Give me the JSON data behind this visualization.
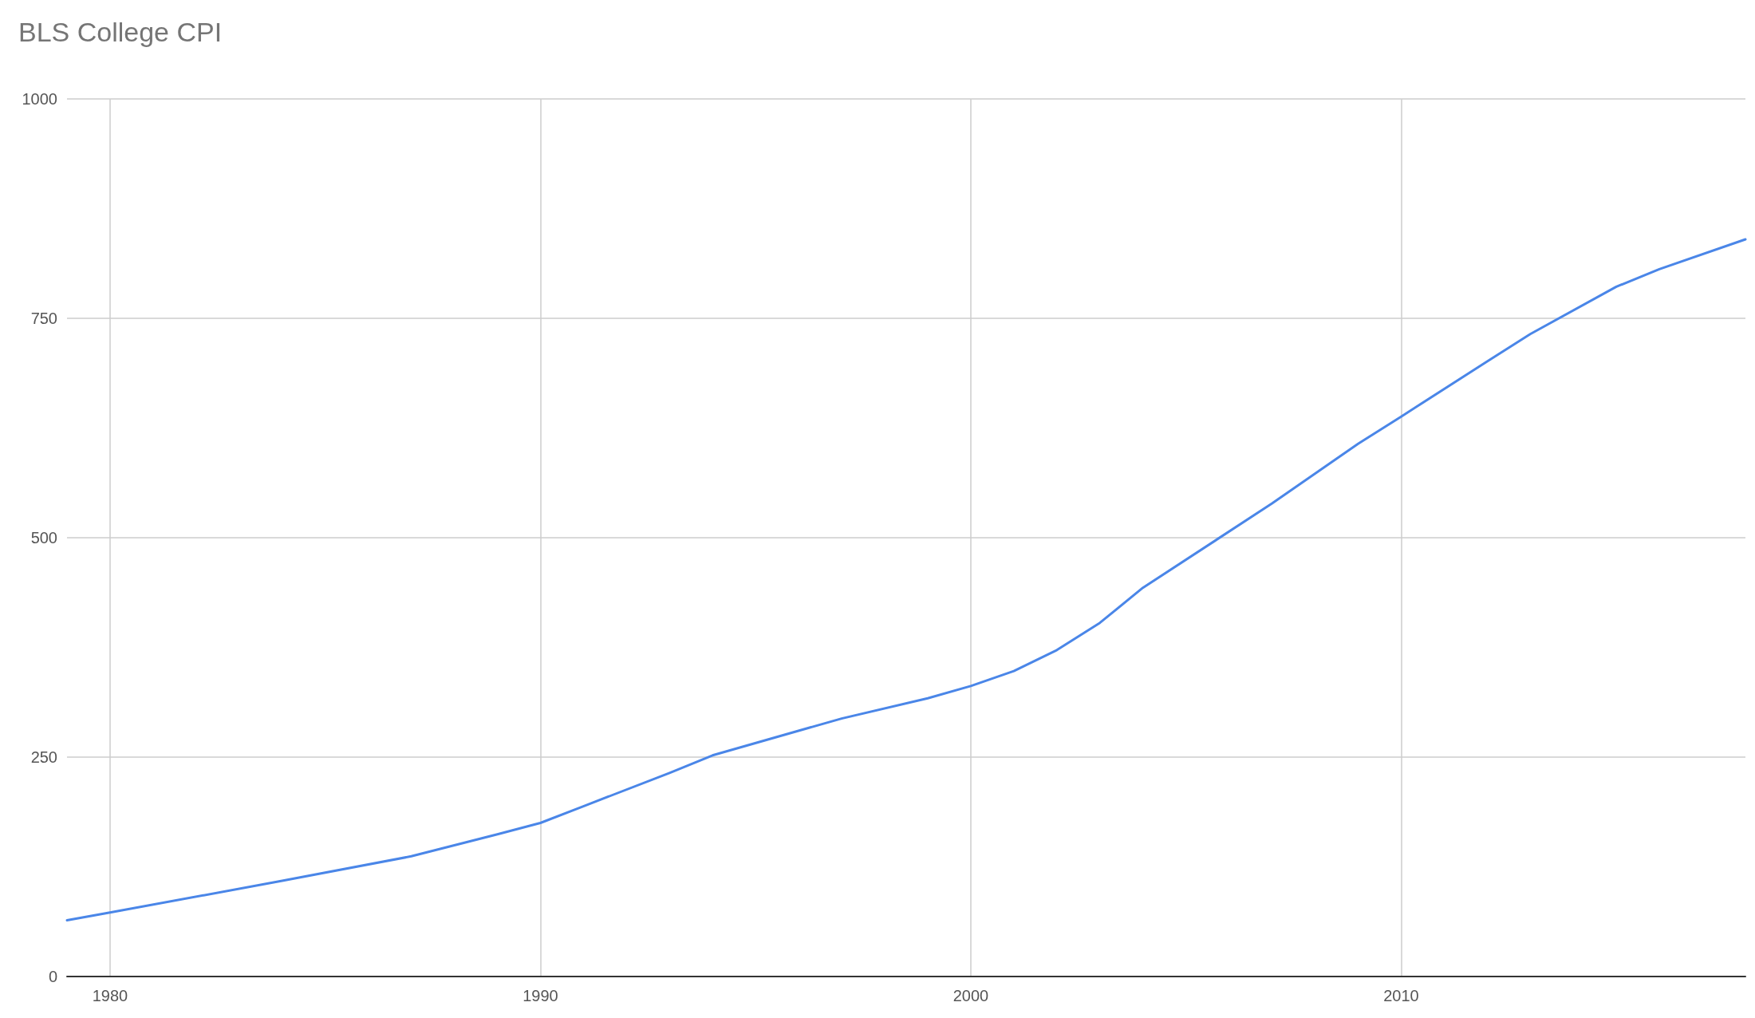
{
  "chart_data": {
    "type": "line",
    "title": "BLS College CPI",
    "x": [
      1979,
      1980,
      1984,
      1987,
      1989,
      1990,
      1991,
      1993,
      1994,
      1997,
      1999,
      2000,
      2001,
      2002,
      2003,
      2004,
      2007,
      2009,
      2010,
      2012,
      2013,
      2015,
      2016,
      2018
    ],
    "series": [
      {
        "color": "#4a86e8",
        "values": [
          64,
          73,
          109,
          137,
          162,
          175,
          194,
          232,
          252,
          294,
          317,
          331,
          348,
          372,
          403,
          443,
          539,
          607,
          638,
          701,
          732,
          786,
          806,
          840
        ]
      }
    ],
    "xlim": [
      1979,
      2018
    ],
    "xticks": [
      1980,
      1990,
      2000,
      2010
    ],
    "ylim": [
      0,
      1000
    ],
    "yticks": [
      0,
      250,
      500,
      750,
      1000
    ],
    "grid": true,
    "marker": "none",
    "line_style": "solid"
  }
}
